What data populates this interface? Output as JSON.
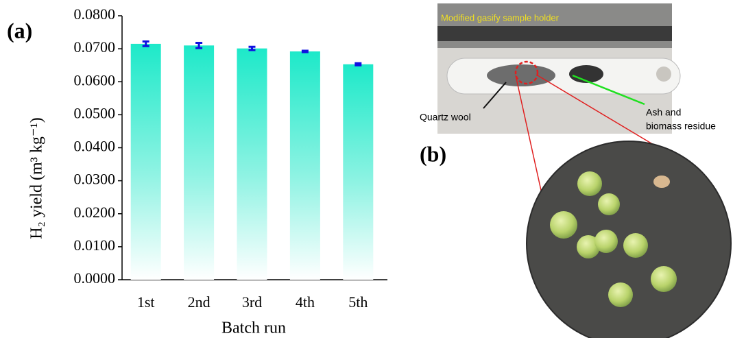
{
  "chart_data": {
    "type": "bar",
    "panel_label": "(a)",
    "ylabel": "H₂ yield (m³ kg⁻¹)",
    "xlabel": "Batch run",
    "categories": [
      "1st",
      "2nd",
      "3rd",
      "4th",
      "5th"
    ],
    "values": [
      0.0715,
      0.071,
      0.0701,
      0.0692,
      0.0653
    ],
    "errors": [
      0.0007,
      0.0008,
      0.0005,
      0.0002,
      0.0003
    ],
    "color": "#1de9c9",
    "error_color": "#1010e0",
    "ylim": [
      0,
      0.08
    ],
    "yticks": [
      {
        "value": 0,
        "label": "0.0000"
      },
      {
        "value": 0.01,
        "label": "0.0100"
      },
      {
        "value": 0.02,
        "label": "0.0200"
      },
      {
        "value": 0.03,
        "label": "0.0300"
      },
      {
        "value": 0.04,
        "label": "0.0400"
      },
      {
        "value": 0.05,
        "label": "0.0500"
      },
      {
        "value": 0.06,
        "label": "0.0600"
      },
      {
        "value": 0.07,
        "label": "0.0700"
      },
      {
        "value": 0.08,
        "label": "0.0800"
      }
    ]
  },
  "photo": {
    "panel_label": "(b)",
    "caption": "Modified gasify sample holder",
    "left_label": "Quartz wool",
    "right_label": [
      "Ash and",
      "biomass residue"
    ]
  }
}
